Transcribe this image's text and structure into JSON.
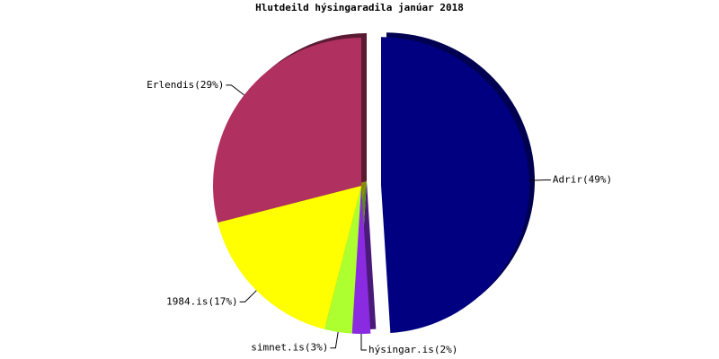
{
  "chart_data": {
    "type": "pie",
    "title": "Hlutdeild hýsingaradila janúar 2018",
    "categories": [
      "Adrir(49%)",
      "hýsingar.is(2%)",
      "simnet.is(3%)",
      "1984.is(17%)",
      "Erlendis(29%)"
    ],
    "values": [
      49,
      2,
      3,
      17,
      29
    ],
    "colors": [
      "#000080",
      "#8a2be2",
      "#adff2f",
      "#ffff00",
      "#b03060"
    ],
    "shadow_colors": [
      "#000050",
      "#4a1a78",
      "#5a8a18",
      "#8a8a00",
      "#5a1a32"
    ],
    "exploded": [
      true,
      false,
      false,
      false,
      false
    ]
  }
}
